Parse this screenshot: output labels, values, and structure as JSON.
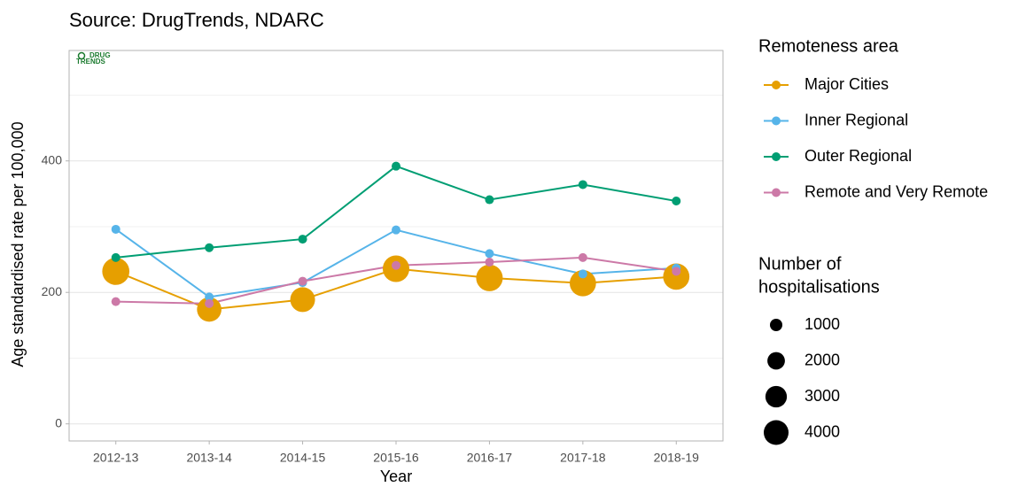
{
  "chart_data": {
    "type": "line",
    "title": "Source: DrugTrends, NDARC",
    "logo": [
      "DRUG",
      "TRENDS"
    ],
    "x_label": "Year",
    "y_label": "Age standardised rate per 100,000",
    "categories": [
      "2012-13",
      "2013-14",
      "2014-15",
      "2015-16",
      "2016-17",
      "2017-18",
      "2018-19"
    ],
    "ylim": [
      -26,
      568
    ],
    "yticks": [
      0,
      200,
      400
    ],
    "minor_grid": [
      100,
      300,
      500
    ],
    "grid": true,
    "legend_title": "Remoteness area",
    "series": [
      {
        "name": "Major Cities",
        "color": "#E69F00",
        "values": [
          232,
          174,
          189,
          236,
          222,
          214,
          224
        ],
        "sizes": [
          4800,
          3900,
          4000,
          4600,
          4600,
          4500,
          4500
        ]
      },
      {
        "name": "Inner Regional",
        "color": "#56B4E9",
        "values": [
          296,
          193,
          215,
          295,
          259,
          228,
          237
        ]
      },
      {
        "name": "Outer Regional",
        "color": "#009E73",
        "values": [
          253,
          268,
          281,
          392,
          341,
          364,
          339
        ]
      },
      {
        "name": "Remote and Very Remote",
        "color": "#CC79A7",
        "values": [
          186,
          183,
          217,
          241,
          246,
          253,
          232
        ]
      }
    ],
    "size_legend": {
      "title": [
        "Number of",
        "hospitalisations"
      ],
      "values": [
        1000,
        2000,
        3000,
        4000
      ]
    }
  }
}
